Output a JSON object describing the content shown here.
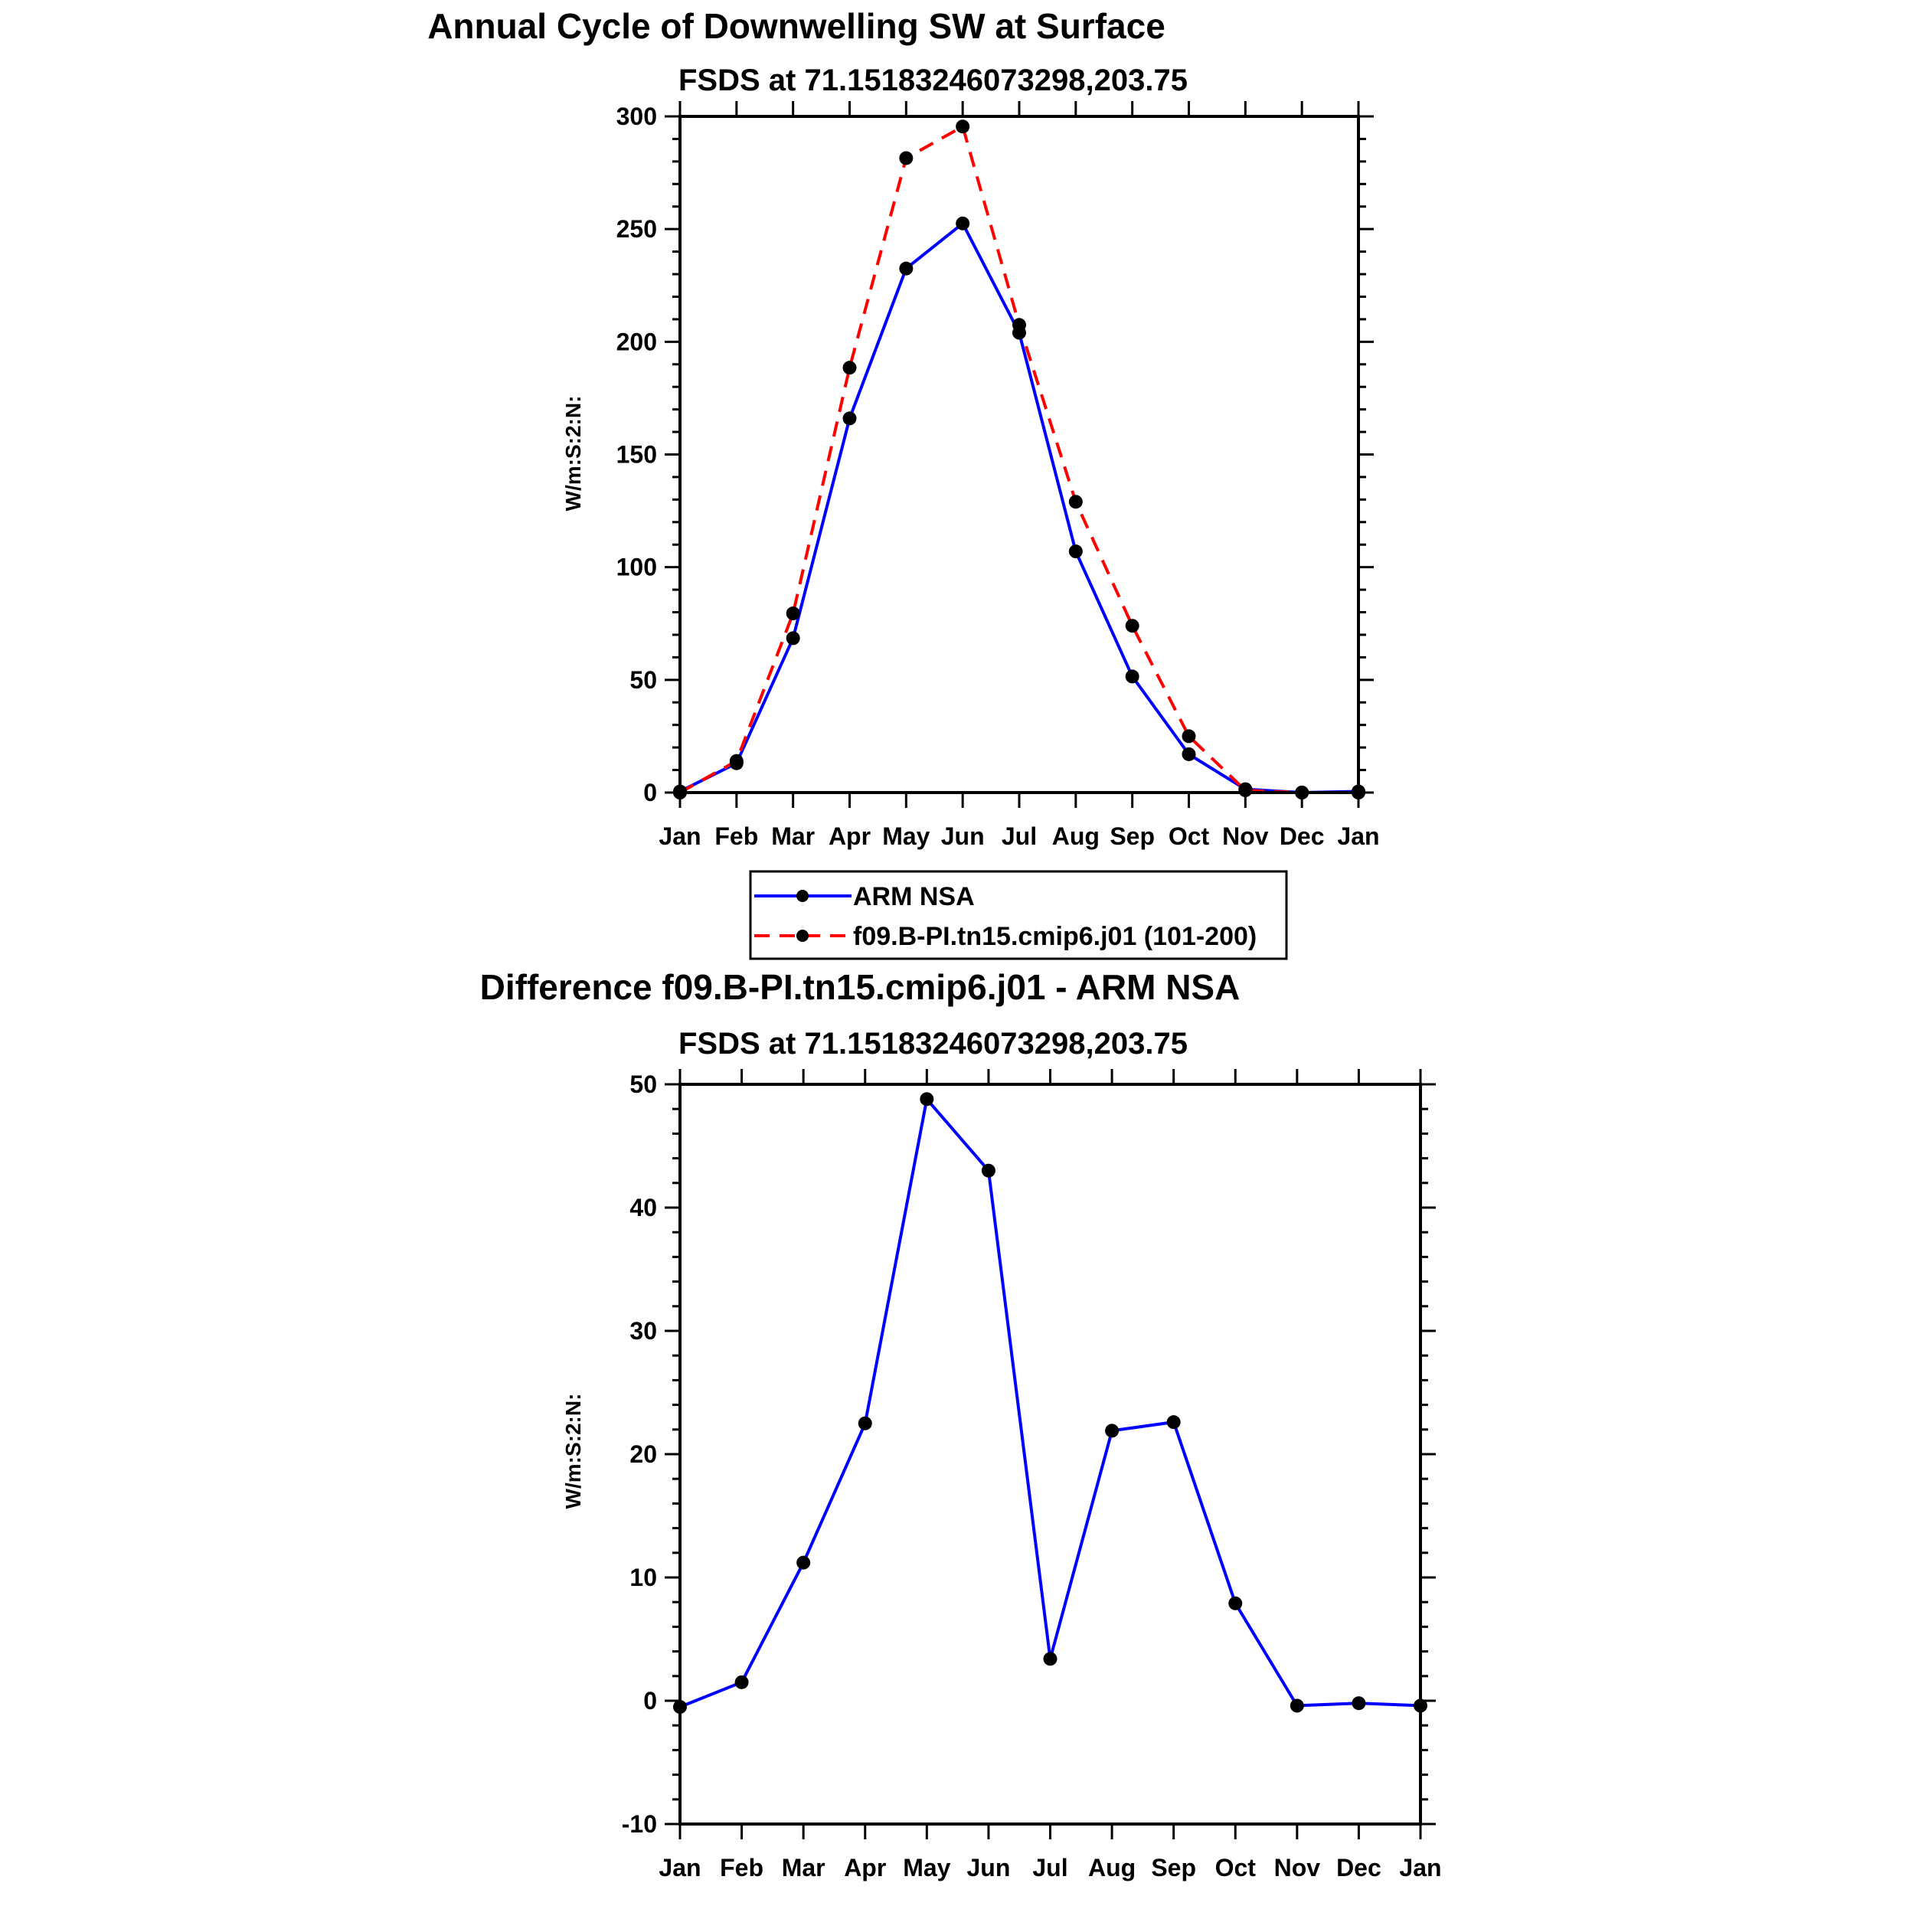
{
  "colors": {
    "obs": "#0000ff",
    "model": "#ff0000",
    "marker": "#000000"
  },
  "chart_data": [
    {
      "type": "line",
      "title": "Annual Cycle of Downwelling SW at Surface",
      "subtitle": "FSDS at 71.15183246073298,203.75",
      "ylabel": "W/m:S:2:N:",
      "xlabel": "",
      "categories": [
        "Jan",
        "Feb",
        "Mar",
        "Apr",
        "May",
        "Jun",
        "Jul",
        "Aug",
        "Sep",
        "Oct",
        "Nov",
        "Dec",
        "Jan"
      ],
      "ylim": [
        0,
        300
      ],
      "yticks": [
        0,
        50,
        100,
        150,
        200,
        250,
        300
      ],
      "grid": false,
      "legend_position": "below",
      "series": [
        {
          "name": "ARM NSA",
          "style": "solid",
          "values": [
            0.5,
            13,
            68.5,
            166,
            232.5,
            252.5,
            204,
            107,
            51.5,
            17,
            1.5,
            0,
            0.5
          ]
        },
        {
          "name": "f09.B-PI.tn15.cmip6.j01 (101-200)",
          "style": "dashed",
          "values": [
            0,
            14,
            79.5,
            188.5,
            281.5,
            295.5,
            207.5,
            129,
            74,
            25,
            1,
            0,
            0
          ]
        }
      ]
    },
    {
      "type": "line",
      "title": "Difference f09.B-PI.tn15.cmip6.j01 - ARM NSA",
      "subtitle": "FSDS at 71.15183246073298,203.75",
      "ylabel": "W/m:S:2:N:",
      "xlabel": "",
      "categories": [
        "Jan",
        "Feb",
        "Mar",
        "Apr",
        "May",
        "Jun",
        "Jul",
        "Aug",
        "Sep",
        "Oct",
        "Nov",
        "Dec",
        "Jan"
      ],
      "ylim": [
        -10,
        50
      ],
      "yticks": [
        -10,
        0,
        10,
        20,
        30,
        40,
        50
      ],
      "grid": false,
      "series": [
        {
          "style": "solid",
          "values": [
            -0.5,
            1.5,
            11.2,
            22.5,
            48.8,
            43,
            3.4,
            21.9,
            22.6,
            7.9,
            -0.4,
            -0.2,
            -0.4
          ]
        }
      ]
    }
  ]
}
